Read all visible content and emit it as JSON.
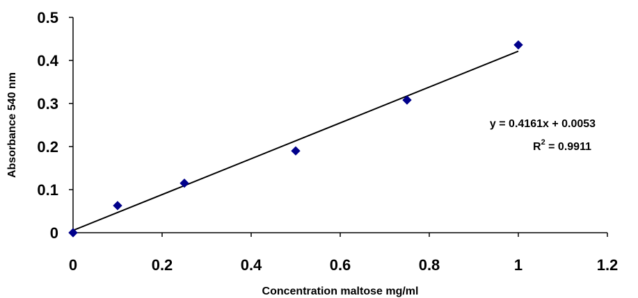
{
  "chart_data": {
    "type": "scatter",
    "xlabel": "Concentration maltose mg/ml",
    "ylabel": "Absorbance 540 nm",
    "xlim": [
      0,
      1.2
    ],
    "ylim": [
      0,
      0.5
    ],
    "x_ticks": [
      "0",
      "0.2",
      "0.4",
      "0.6",
      "0.8",
      "1",
      "1.2"
    ],
    "y_ticks": [
      "0",
      "0.1",
      "0.2",
      "0.3",
      "0.4",
      "0.5"
    ],
    "grid": false,
    "marker": "diamond",
    "marker_color": "#00008B",
    "line_color": "#000000",
    "points": [
      {
        "x": 0,
        "y": 0
      },
      {
        "x": 0.1,
        "y": 0.063
      },
      {
        "x": 0.25,
        "y": 0.115
      },
      {
        "x": 0.5,
        "y": 0.19
      },
      {
        "x": 0.75,
        "y": 0.308
      },
      {
        "x": 1,
        "y": 0.436
      }
    ],
    "trendline": {
      "slope": 0.4161,
      "intercept": 0.0053,
      "x_range": [
        0,
        1
      ],
      "equation_label": "y = 0.4161x + 0.0053",
      "r2_prefix": "R",
      "r2_exponent": "2",
      "r2_value": " = 0.9911"
    }
  }
}
